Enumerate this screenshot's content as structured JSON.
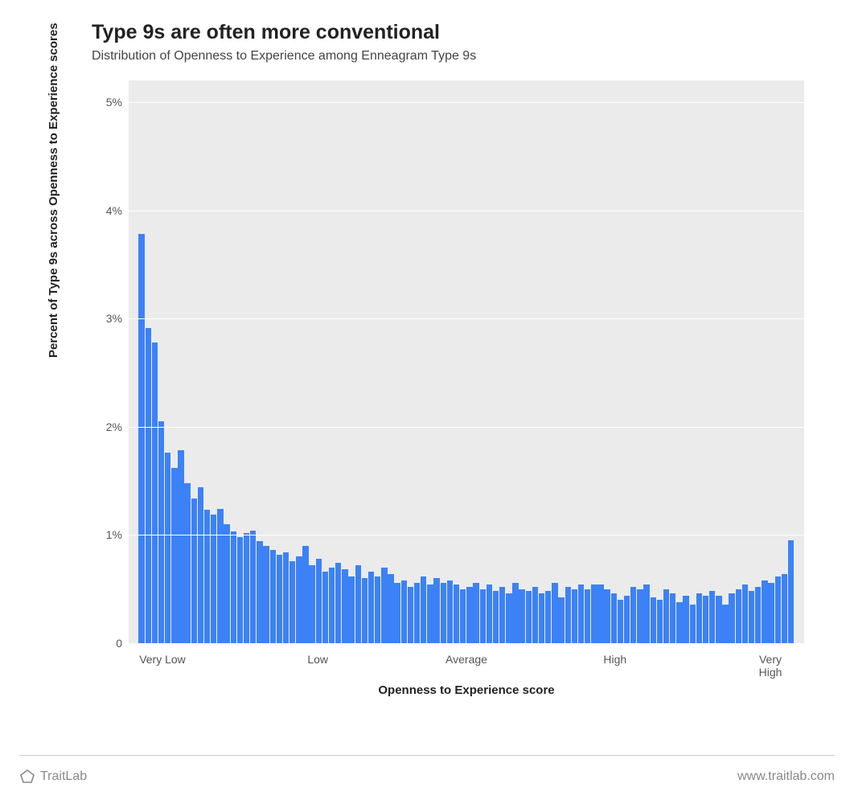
{
  "title": "Type 9s are often more conventional",
  "subtitle": "Distribution of Openness to Experience among Enneagram Type 9s",
  "y_axis_title": "Percent of Type 9s across Openness to Experience scores",
  "x_axis_title": "Openness to Experience score",
  "chart": {
    "type": "histogram",
    "bar_color": "#3c82f6",
    "background_color": "#ebebeb",
    "grid_color": "#ffffff",
    "y_max": 5.2,
    "y_ticks": [
      0,
      1,
      2,
      3,
      4,
      5
    ],
    "y_tick_labels": [
      "0",
      "1%",
      "2%",
      "3%",
      "4%",
      "5%"
    ],
    "x_tick_labels": [
      "Very Low",
      "Low",
      "Average",
      "High",
      "Very High"
    ],
    "x_tick_positions_pct": [
      5,
      28,
      50,
      72,
      95
    ],
    "values": [
      3.78,
      2.91,
      2.78,
      2.05,
      1.76,
      1.62,
      1.78,
      1.48,
      1.34,
      1.44,
      1.23,
      1.19,
      1.24,
      1.1,
      1.03,
      0.98,
      1.02,
      1.04,
      0.94,
      0.9,
      0.86,
      0.82,
      0.84,
      0.76,
      0.8,
      0.9,
      0.72,
      0.78,
      0.66,
      0.7,
      0.74,
      0.68,
      0.62,
      0.72,
      0.6,
      0.66,
      0.62,
      0.7,
      0.64,
      0.56,
      0.58,
      0.52,
      0.56,
      0.62,
      0.54,
      0.6,
      0.56,
      0.58,
      0.54,
      0.5,
      0.52,
      0.56,
      0.5,
      0.54,
      0.48,
      0.52,
      0.46,
      0.56,
      0.5,
      0.48,
      0.52,
      0.46,
      0.48,
      0.56,
      0.42,
      0.52,
      0.5,
      0.54,
      0.5,
      0.54,
      0.54,
      0.5,
      0.46,
      0.4,
      0.44,
      0.52,
      0.5,
      0.54,
      0.42,
      0.4,
      0.5,
      0.46,
      0.38,
      0.44,
      0.36,
      0.46,
      0.44,
      0.48,
      0.44,
      0.36,
      0.46,
      0.5,
      0.54,
      0.48,
      0.52,
      0.58,
      0.56,
      0.62,
      0.64,
      0.95
    ]
  },
  "footer": {
    "brand": "TraitLab",
    "url": "www.traitlab.com",
    "pentagon_color": "#888888"
  }
}
